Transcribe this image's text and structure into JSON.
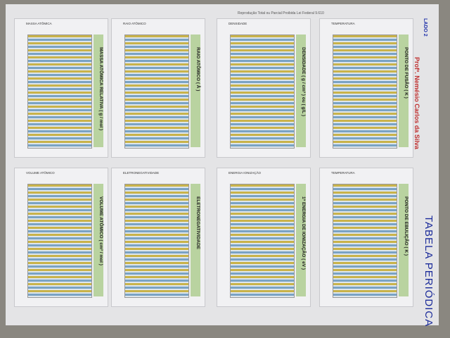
{
  "header": {
    "note": "Reprodução Total ou Parcial Proibida Lei Federal 9.610",
    "side": "LADO 2",
    "author": "Profº. Nemésio Carlos da Silva",
    "title": "TABELA PERIÓDICA"
  },
  "panels": [
    {
      "axis_title": "MASSA ATÔMICA",
      "title": "MASSA ATÔMICA RELATIVA ( g / mol )"
    },
    {
      "axis_title": "RAIO ATÔMICO",
      "title": "RAIO ATÔMICO ( Å )"
    },
    {
      "axis_title": "DENSIDADE",
      "title": "DENSIDADE ( g / cm³ ) ou ( g/L )"
    },
    {
      "axis_title": "TEMPERATURA",
      "title": "PONTO DE FUSÃO ( K )"
    },
    {
      "axis_title": "VOLUME ATÔMICO",
      "title": "VOLUME ATÔMICO ( cm³ / mol )"
    },
    {
      "axis_title": "ELETRONEGATIVIDADE",
      "title": "ELETRONEGATIVIDADE"
    },
    {
      "axis_title": "ENERGIA IONIZAÇÃO",
      "title": "1ª ENERGIA DE IONIZAÇÃO ( eV )"
    },
    {
      "axis_title": "TEMPERATURA",
      "title": "PONTO DE EBULIÇÃO ( K )"
    }
  ]
}
